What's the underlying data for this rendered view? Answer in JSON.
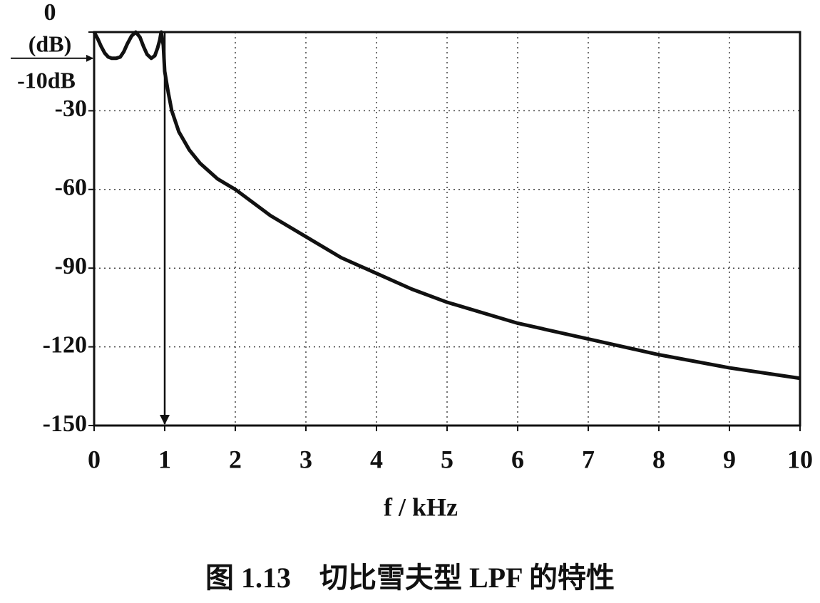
{
  "chart_data": {
    "type": "line",
    "x_label": "f / kHz",
    "y_unit": "(dB)",
    "caption": "图 1.13　切比雪夫型 LPF 的特性",
    "ripple": {
      "value": -10,
      "label": "-10dB"
    },
    "xlim": [
      0,
      10
    ],
    "ylim": [
      -150,
      0
    ],
    "xticks": [
      0,
      1,
      2,
      3,
      4,
      5,
      6,
      7,
      8,
      9,
      10
    ],
    "yticks": [
      0,
      -30,
      -60,
      -90,
      -120,
      -150
    ],
    "grid": true,
    "series": [
      {
        "color": "#111111",
        "x": [
          0,
          0.05,
          0.1,
          0.15,
          0.2,
          0.25,
          0.31,
          0.37,
          0.42,
          0.47,
          0.53,
          0.59,
          0.65,
          0.7,
          0.75,
          0.81,
          0.86,
          0.9,
          0.93,
          0.95,
          0.98,
          1.0,
          1.05,
          1.1,
          1.2,
          1.35,
          1.5,
          1.75,
          2,
          2.5,
          3,
          3.5,
          4,
          4.5,
          5,
          6,
          7,
          8,
          9,
          10
        ],
        "values": [
          0,
          -2.5,
          -5.5,
          -8,
          -9.5,
          -10,
          -10,
          -9.5,
          -7.5,
          -4.5,
          -1.5,
          0,
          -2,
          -5.5,
          -8.5,
          -10,
          -9,
          -6,
          -3,
          0,
          -5,
          -15,
          -23,
          -30,
          -38,
          -45,
          -50,
          -56,
          -60,
          -70,
          -78,
          -86,
          -92,
          -98,
          -103,
          -111,
          -117,
          -123,
          -128,
          -132
        ]
      }
    ]
  }
}
